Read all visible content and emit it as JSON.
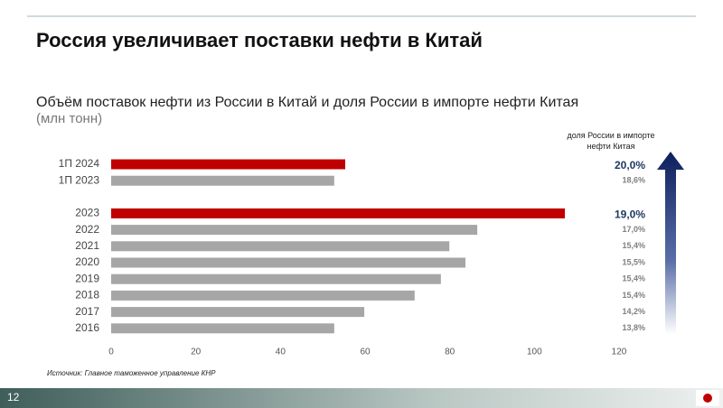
{
  "page": {
    "title": "Россия увеличивает поставки нефти в Китай",
    "number": "12",
    "source": "Источник: Главное таможенное управление КНР"
  },
  "chart_data": {
    "type": "bar",
    "orientation": "horizontal",
    "title": "Объём поставок нефти из России в Китай и доля России в импорте нефти Китая",
    "subtitle": "(млн тонн)",
    "categories": [
      "1П 2024",
      "1П 2023",
      "2023",
      "2022",
      "2021",
      "2020",
      "2019",
      "2018",
      "2017",
      "2016"
    ],
    "values": [
      55.3,
      52.7,
      107.2,
      86.5,
      79.9,
      83.7,
      77.9,
      71.7,
      59.8,
      52.7
    ],
    "colors": [
      "#c00000",
      "#a6a6a6",
      "#c00000",
      "#a6a6a6",
      "#a6a6a6",
      "#a6a6a6",
      "#a6a6a6",
      "#a6a6a6",
      "#a6a6a6",
      "#a6a6a6"
    ],
    "xlim": [
      0,
      120
    ],
    "xticks": [
      0,
      20,
      40,
      60,
      80,
      100,
      120
    ],
    "grid": false,
    "share": {
      "label": "доля России в импорте нефти Китая",
      "values": [
        20.0,
        18.6,
        19.0,
        17.0,
        15.4,
        15.5,
        15.4,
        15.4,
        14.2,
        13.8
      ],
      "value_labels": [
        "20,0%",
        "18,6%",
        "19,0%",
        "17,0%",
        "15,4%",
        "15,5%",
        "15,4%",
        "15,4%",
        "14,2%",
        "13,8%"
      ],
      "label_colors": [
        "#1f3864",
        "#7f7f7f",
        "#1f3864",
        "#7f7f7f",
        "#7f7f7f",
        "#7f7f7f",
        "#7f7f7f",
        "#7f7f7f",
        "#7f7f7f",
        "#7f7f7f"
      ]
    }
  }
}
